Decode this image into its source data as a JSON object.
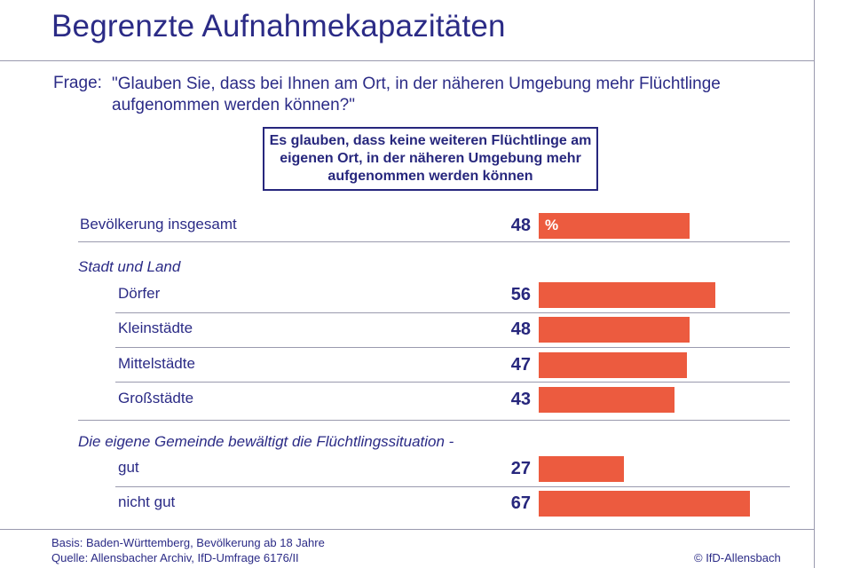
{
  "title": "Begrenzte Aufnahmekapazitäten",
  "question": {
    "label": "Frage:",
    "text": "\"Glauben Sie, dass bei Ihnen am Ort, in der näheren Umgebung mehr Flüchtlinge aufgenommen werden können?\""
  },
  "header_box": "Es glauben, dass keine weiteren Flüchtlinge am eigenen Ort, in der näheren Umgebung mehr aufgenommen werden können",
  "groups": {
    "stadt_land": "Stadt und Land",
    "gemeinde": "Die eigene Gemeinde bewältigt die Flüchtlingssituation -"
  },
  "percent_sign": "%",
  "colors": {
    "bar": "#ec5b3f",
    "text": "#2b2b86"
  },
  "chart_data": {
    "type": "bar",
    "orientation": "horizontal",
    "unit": "%",
    "categories": [
      "Bevölkerung insgesamt",
      "Dörfer",
      "Kleinstädte",
      "Mittelstädte",
      "Großstädte",
      "gut",
      "nicht gut"
    ],
    "values": [
      48,
      56,
      48,
      47,
      43,
      27,
      67
    ],
    "xlim": [
      0,
      100
    ],
    "grid": false
  },
  "footer": {
    "basis": "Basis: Baden-Württemberg, Bevölkerung ab 18 Jahre",
    "quelle": "Quelle: Allensbacher Archiv, IfD-Umfrage 6176/II",
    "copyright": "© IfD-Allensbach"
  }
}
